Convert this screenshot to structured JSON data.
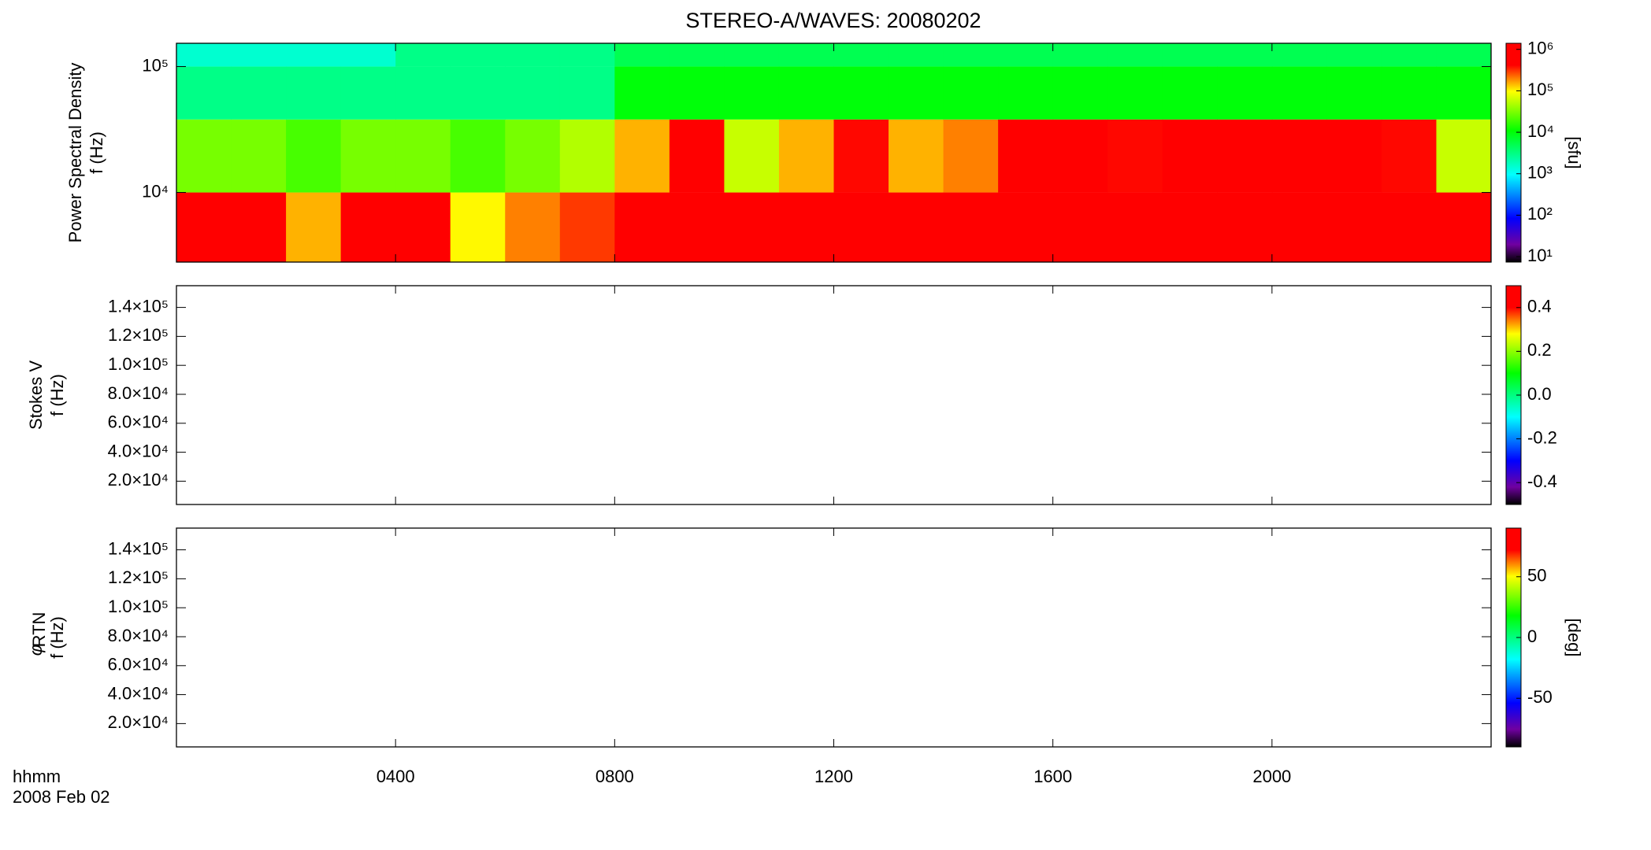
{
  "figure": {
    "title": "STEREO-A/WAVES: 20080202",
    "x_label": "hhmm",
    "x_sublabel": "2008 Feb 02",
    "xlim": [
      0,
      24
    ],
    "xticks": [
      {
        "value": 4,
        "label": "0400"
      },
      {
        "value": 8,
        "label": "0800"
      },
      {
        "value": 12,
        "label": "1200"
      },
      {
        "value": 16,
        "label": "1600"
      },
      {
        "value": 20,
        "label": "2000"
      }
    ]
  },
  "chart_data": [
    {
      "type": "heatmap",
      "quantity": "Power Spectral Density",
      "ylabel": "f (Hz)",
      "yscale": "log",
      "ylim": [
        2800,
        153000
      ],
      "yticks": [
        {
          "value": 10000,
          "label": "10⁴"
        },
        {
          "value": 100000,
          "label": "10⁵"
        }
      ],
      "xbins": [
        0,
        1,
        2,
        3,
        4,
        5,
        6,
        7,
        8,
        9,
        10,
        11,
        12,
        13,
        14,
        15,
        16,
        17,
        18,
        19,
        20,
        21,
        22,
        23,
        24
      ],
      "ybins": [
        2800,
        10000,
        38000,
        100000,
        153000
      ],
      "z": [
        [
          600000,
          600000,
          150000,
          600000,
          600000,
          100000,
          200000,
          300000,
          600000,
          600000,
          600000,
          600000,
          600000,
          600000,
          600000,
          600000,
          600000,
          600000,
          600000,
          600000,
          600000,
          600000,
          600000,
          600000
        ],
        [
          30000,
          30000,
          20000,
          30000,
          30000,
          20000,
          30000,
          50000,
          150000,
          600000,
          60000,
          150000,
          400000,
          150000,
          200000,
          600000,
          600000,
          400000,
          600000,
          600000,
          600000,
          600000,
          400000,
          60000
        ],
        [
          3000,
          3000,
          3000,
          3000,
          3000,
          3000,
          3000,
          3000,
          10000,
          10000,
          10000,
          10000,
          10000,
          10000,
          10000,
          10000,
          10000,
          10000,
          10000,
          10000,
          10000,
          10000,
          10000,
          10000
        ],
        [
          1500,
          1500,
          1500,
          1500,
          3000,
          3000,
          3000,
          3000,
          5000,
          5000,
          5000,
          5000,
          5000,
          5000,
          5000,
          5000,
          5000,
          5000,
          5000,
          5000,
          5000,
          5000,
          5000,
          5000
        ]
      ],
      "colorbar": {
        "scale": "log",
        "lim": [
          7.4,
          1400000
        ],
        "label": "[sfu]",
        "ticks": [
          {
            "value": 10,
            "label": "10¹"
          },
          {
            "value": 100,
            "label": "10²"
          },
          {
            "value": 1000,
            "label": "10³"
          },
          {
            "value": 10000,
            "label": "10⁴"
          },
          {
            "value": 100000,
            "label": "10⁵"
          },
          {
            "value": 1000000,
            "label": "10⁶"
          }
        ]
      }
    },
    {
      "type": "heatmap",
      "quantity": "Stokes V",
      "ylabel": "f (Hz)",
      "yscale": "linear",
      "ylim": [
        3900,
        155000
      ],
      "yticks": [
        {
          "value": 20000,
          "label": "2.0×10⁴"
        },
        {
          "value": 40000,
          "label": "4.0×10⁴"
        },
        {
          "value": 60000,
          "label": "6.0×10⁴"
        },
        {
          "value": 80000,
          "label": "8.0×10⁴"
        },
        {
          "value": 100000,
          "label": "1.0×10⁵"
        },
        {
          "value": 120000,
          "label": "1.2×10⁵"
        },
        {
          "value": 140000,
          "label": "1.4×10⁵"
        }
      ],
      "colorbar": {
        "scale": "linear",
        "lim": [
          -0.5,
          0.5
        ],
        "ticks": [
          -0.4,
          -0.2,
          {
            "value": 0,
            "label": "0.0"
          },
          0.2,
          0.4
        ]
      }
    },
    {
      "type": "heatmap",
      "quantity": "φ",
      "quantity_sub": "RTN",
      "ylabel": "f (Hz)",
      "yscale": "linear",
      "ylim": [
        3900,
        155000
      ],
      "yticks": [
        {
          "value": 20000,
          "label": "2.0×10⁴"
        },
        {
          "value": 40000,
          "label": "4.0×10⁴"
        },
        {
          "value": 60000,
          "label": "6.0×10⁴"
        },
        {
          "value": 80000,
          "label": "8.0×10⁴"
        },
        {
          "value": 100000,
          "label": "1.0×10⁵"
        },
        {
          "value": 120000,
          "label": "1.2×10⁵"
        },
        {
          "value": 140000,
          "label": "1.4×10⁵"
        }
      ],
      "colorbar": {
        "scale": "linear",
        "lim": [
          -90,
          90
        ],
        "label": "[deg]",
        "ticks": [
          -50,
          0,
          50
        ]
      }
    }
  ]
}
